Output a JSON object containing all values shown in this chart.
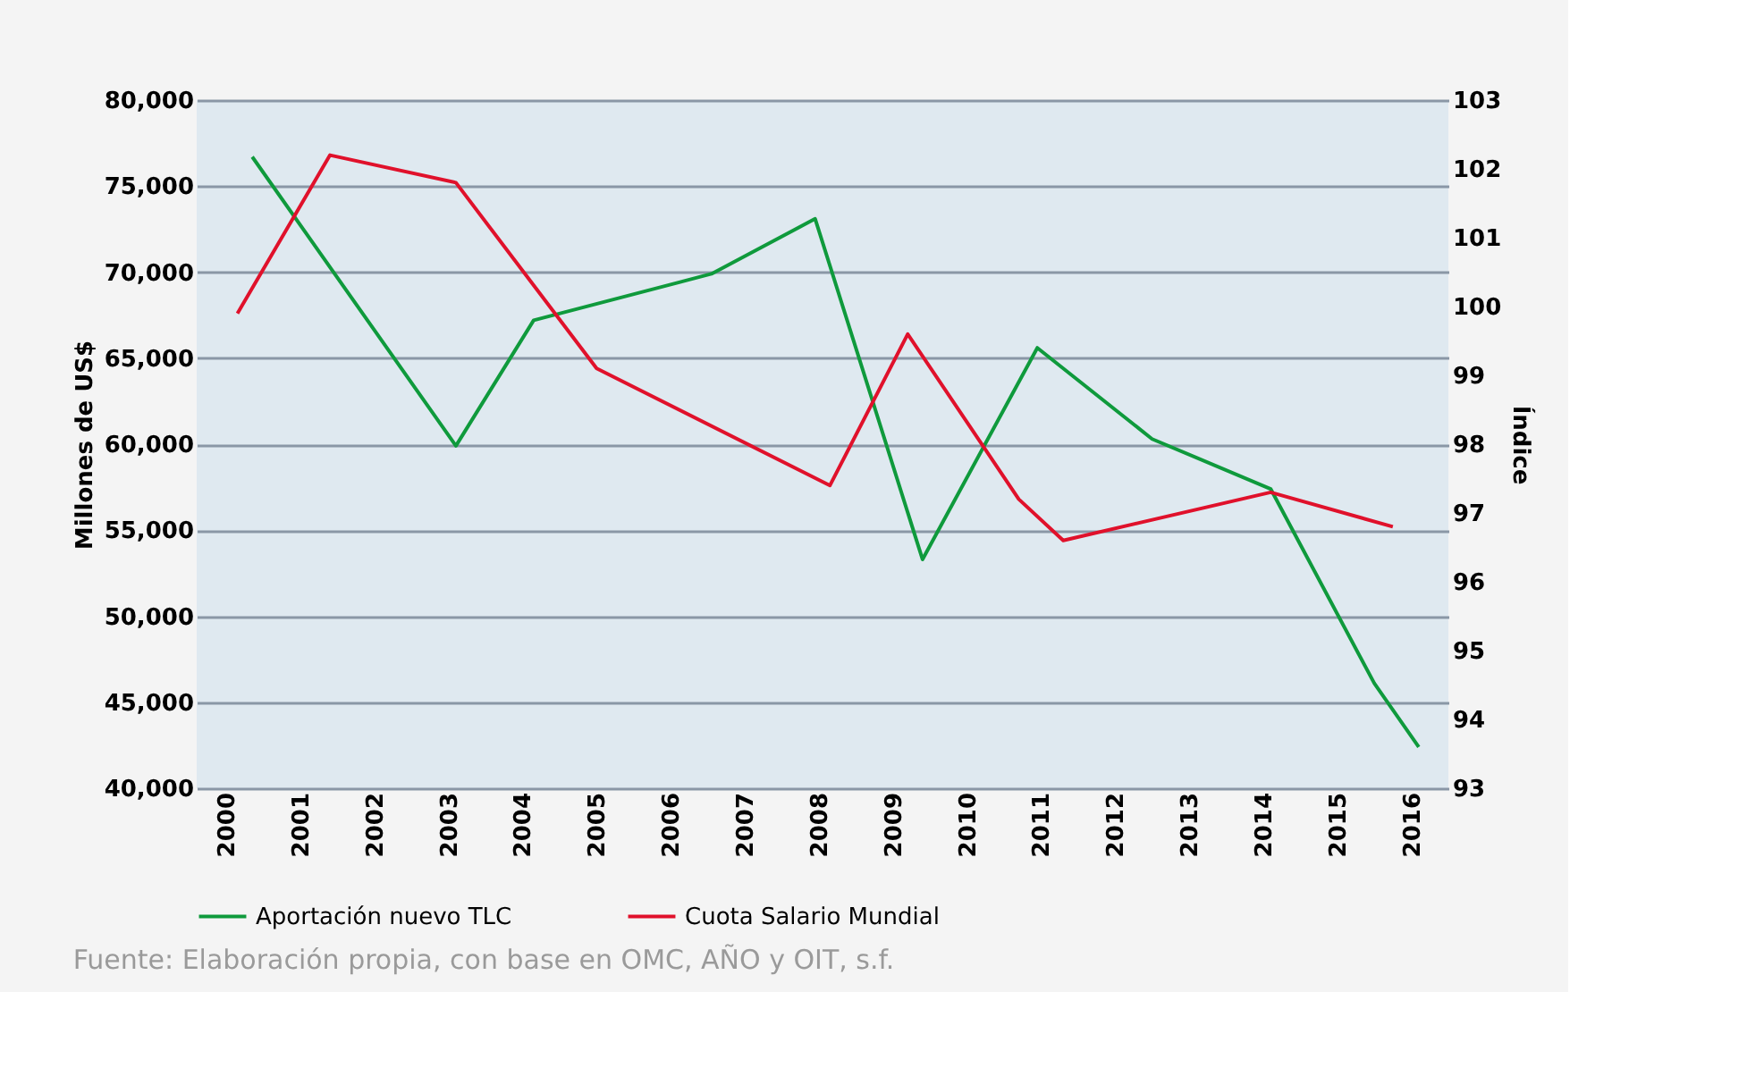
{
  "chart_data": {
    "type": "line",
    "ylabel": "Millones de US$",
    "y2label": "Índice",
    "xlim": [
      1999.6,
      2016.5
    ],
    "xticks": [
      2000,
      2001,
      2002,
      2003,
      2004,
      2005,
      2006,
      2007,
      2008,
      2009,
      2010,
      2011,
      2012,
      2013,
      2014,
      2015,
      2016
    ],
    "ylim": [
      40000,
      80000
    ],
    "yticks": [
      {
        "value": 40000,
        "label": "40,000"
      },
      {
        "value": 45000,
        "label": "45,000"
      },
      {
        "value": 50000,
        "label": "50,000"
      },
      {
        "value": 55000,
        "label": "55,000"
      },
      {
        "value": 60000,
        "label": "60,000"
      },
      {
        "value": 65000,
        "label": "65,000"
      },
      {
        "value": 70000,
        "label": "70,000"
      },
      {
        "value": 75000,
        "label": "75,000"
      },
      {
        "value": 80000,
        "label": "80,000"
      }
    ],
    "y2lim": [
      93,
      103
    ],
    "y2ticks": [
      93,
      94,
      95,
      96,
      97,
      98,
      99,
      100,
      101,
      102,
      103
    ],
    "series": [
      {
        "name": "Aportación nuevo TLC",
        "color": "#0f9a3c",
        "x": [
          2000.35,
          2003.1,
          2004.15,
          2006.55,
          2007.95,
          2009.4,
          2010.95,
          2012.5,
          2014.1,
          2015.5,
          2016.1
        ],
        "values": [
          76700,
          59900,
          67200,
          69900,
          73100,
          53300,
          65600,
          60300,
          57400,
          46100,
          42400
        ]
      },
      {
        "name": "Cuota Salario Mundial",
        "color": "#e0112b",
        "axis": "y2",
        "x": [
          2000.15,
          2001.4,
          2003.1,
          2005.0,
          2008.15,
          2009.2,
          2010.7,
          2011.3,
          2014.1,
          2015.75
        ],
        "values": [
          99.9,
          102.2,
          101.8,
          99.1,
          97.4,
          99.6,
          97.2,
          96.6,
          97.3,
          96.8
        ]
      }
    ],
    "grid": "y",
    "legend": "bottom",
    "annotations": [
      "Fuente: Elaboración propia, con base en OMC, AÑO y OIT, s.f."
    ]
  }
}
